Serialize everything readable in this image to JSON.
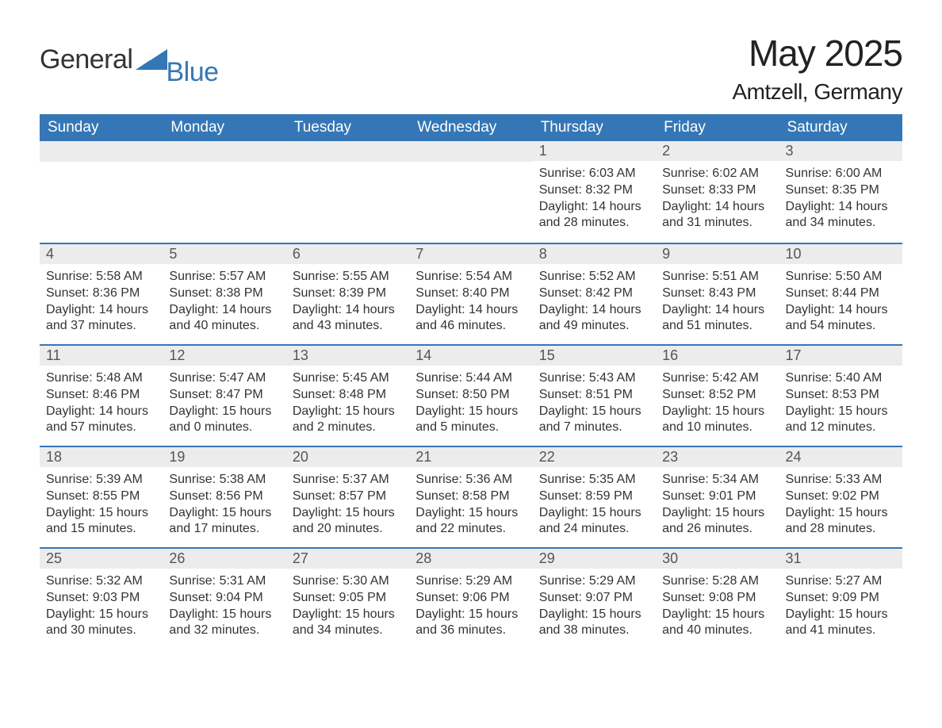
{
  "brand": {
    "part1": "General",
    "part2": "Blue"
  },
  "title": "May 2025",
  "location": "Amtzell, Germany",
  "colors": {
    "accent": "#3577b6",
    "header_bg": "#3577b6",
    "header_fg": "#ffffff",
    "daynum_bg": "#ececec",
    "daynum_fg": "#555555",
    "text": "#333333",
    "bg": "#ffffff"
  },
  "weekdays": [
    "Sunday",
    "Monday",
    "Tuesday",
    "Wednesday",
    "Thursday",
    "Friday",
    "Saturday"
  ],
  "weeks": [
    [
      {
        "empty": true
      },
      {
        "empty": true
      },
      {
        "empty": true
      },
      {
        "empty": true
      },
      {
        "day": "1",
        "sunrise": "Sunrise: 6:03 AM",
        "sunset": "Sunset: 8:32 PM",
        "daylight1": "Daylight: 14 hours",
        "daylight2": "and 28 minutes."
      },
      {
        "day": "2",
        "sunrise": "Sunrise: 6:02 AM",
        "sunset": "Sunset: 8:33 PM",
        "daylight1": "Daylight: 14 hours",
        "daylight2": "and 31 minutes."
      },
      {
        "day": "3",
        "sunrise": "Sunrise: 6:00 AM",
        "sunset": "Sunset: 8:35 PM",
        "daylight1": "Daylight: 14 hours",
        "daylight2": "and 34 minutes."
      }
    ],
    [
      {
        "day": "4",
        "sunrise": "Sunrise: 5:58 AM",
        "sunset": "Sunset: 8:36 PM",
        "daylight1": "Daylight: 14 hours",
        "daylight2": "and 37 minutes."
      },
      {
        "day": "5",
        "sunrise": "Sunrise: 5:57 AM",
        "sunset": "Sunset: 8:38 PM",
        "daylight1": "Daylight: 14 hours",
        "daylight2": "and 40 minutes."
      },
      {
        "day": "6",
        "sunrise": "Sunrise: 5:55 AM",
        "sunset": "Sunset: 8:39 PM",
        "daylight1": "Daylight: 14 hours",
        "daylight2": "and 43 minutes."
      },
      {
        "day": "7",
        "sunrise": "Sunrise: 5:54 AM",
        "sunset": "Sunset: 8:40 PM",
        "daylight1": "Daylight: 14 hours",
        "daylight2": "and 46 minutes."
      },
      {
        "day": "8",
        "sunrise": "Sunrise: 5:52 AM",
        "sunset": "Sunset: 8:42 PM",
        "daylight1": "Daylight: 14 hours",
        "daylight2": "and 49 minutes."
      },
      {
        "day": "9",
        "sunrise": "Sunrise: 5:51 AM",
        "sunset": "Sunset: 8:43 PM",
        "daylight1": "Daylight: 14 hours",
        "daylight2": "and 51 minutes."
      },
      {
        "day": "10",
        "sunrise": "Sunrise: 5:50 AM",
        "sunset": "Sunset: 8:44 PM",
        "daylight1": "Daylight: 14 hours",
        "daylight2": "and 54 minutes."
      }
    ],
    [
      {
        "day": "11",
        "sunrise": "Sunrise: 5:48 AM",
        "sunset": "Sunset: 8:46 PM",
        "daylight1": "Daylight: 14 hours",
        "daylight2": "and 57 minutes."
      },
      {
        "day": "12",
        "sunrise": "Sunrise: 5:47 AM",
        "sunset": "Sunset: 8:47 PM",
        "daylight1": "Daylight: 15 hours",
        "daylight2": "and 0 minutes."
      },
      {
        "day": "13",
        "sunrise": "Sunrise: 5:45 AM",
        "sunset": "Sunset: 8:48 PM",
        "daylight1": "Daylight: 15 hours",
        "daylight2": "and 2 minutes."
      },
      {
        "day": "14",
        "sunrise": "Sunrise: 5:44 AM",
        "sunset": "Sunset: 8:50 PM",
        "daylight1": "Daylight: 15 hours",
        "daylight2": "and 5 minutes."
      },
      {
        "day": "15",
        "sunrise": "Sunrise: 5:43 AM",
        "sunset": "Sunset: 8:51 PM",
        "daylight1": "Daylight: 15 hours",
        "daylight2": "and 7 minutes."
      },
      {
        "day": "16",
        "sunrise": "Sunrise: 5:42 AM",
        "sunset": "Sunset: 8:52 PM",
        "daylight1": "Daylight: 15 hours",
        "daylight2": "and 10 minutes."
      },
      {
        "day": "17",
        "sunrise": "Sunrise: 5:40 AM",
        "sunset": "Sunset: 8:53 PM",
        "daylight1": "Daylight: 15 hours",
        "daylight2": "and 12 minutes."
      }
    ],
    [
      {
        "day": "18",
        "sunrise": "Sunrise: 5:39 AM",
        "sunset": "Sunset: 8:55 PM",
        "daylight1": "Daylight: 15 hours",
        "daylight2": "and 15 minutes."
      },
      {
        "day": "19",
        "sunrise": "Sunrise: 5:38 AM",
        "sunset": "Sunset: 8:56 PM",
        "daylight1": "Daylight: 15 hours",
        "daylight2": "and 17 minutes."
      },
      {
        "day": "20",
        "sunrise": "Sunrise: 5:37 AM",
        "sunset": "Sunset: 8:57 PM",
        "daylight1": "Daylight: 15 hours",
        "daylight2": "and 20 minutes."
      },
      {
        "day": "21",
        "sunrise": "Sunrise: 5:36 AM",
        "sunset": "Sunset: 8:58 PM",
        "daylight1": "Daylight: 15 hours",
        "daylight2": "and 22 minutes."
      },
      {
        "day": "22",
        "sunrise": "Sunrise: 5:35 AM",
        "sunset": "Sunset: 8:59 PM",
        "daylight1": "Daylight: 15 hours",
        "daylight2": "and 24 minutes."
      },
      {
        "day": "23",
        "sunrise": "Sunrise: 5:34 AM",
        "sunset": "Sunset: 9:01 PM",
        "daylight1": "Daylight: 15 hours",
        "daylight2": "and 26 minutes."
      },
      {
        "day": "24",
        "sunrise": "Sunrise: 5:33 AM",
        "sunset": "Sunset: 9:02 PM",
        "daylight1": "Daylight: 15 hours",
        "daylight2": "and 28 minutes."
      }
    ],
    [
      {
        "day": "25",
        "sunrise": "Sunrise: 5:32 AM",
        "sunset": "Sunset: 9:03 PM",
        "daylight1": "Daylight: 15 hours",
        "daylight2": "and 30 minutes."
      },
      {
        "day": "26",
        "sunrise": "Sunrise: 5:31 AM",
        "sunset": "Sunset: 9:04 PM",
        "daylight1": "Daylight: 15 hours",
        "daylight2": "and 32 minutes."
      },
      {
        "day": "27",
        "sunrise": "Sunrise: 5:30 AM",
        "sunset": "Sunset: 9:05 PM",
        "daylight1": "Daylight: 15 hours",
        "daylight2": "and 34 minutes."
      },
      {
        "day": "28",
        "sunrise": "Sunrise: 5:29 AM",
        "sunset": "Sunset: 9:06 PM",
        "daylight1": "Daylight: 15 hours",
        "daylight2": "and 36 minutes."
      },
      {
        "day": "29",
        "sunrise": "Sunrise: 5:29 AM",
        "sunset": "Sunset: 9:07 PM",
        "daylight1": "Daylight: 15 hours",
        "daylight2": "and 38 minutes."
      },
      {
        "day": "30",
        "sunrise": "Sunrise: 5:28 AM",
        "sunset": "Sunset: 9:08 PM",
        "daylight1": "Daylight: 15 hours",
        "daylight2": "and 40 minutes."
      },
      {
        "day": "31",
        "sunrise": "Sunrise: 5:27 AM",
        "sunset": "Sunset: 9:09 PM",
        "daylight1": "Daylight: 15 hours",
        "daylight2": "and 41 minutes."
      }
    ]
  ]
}
